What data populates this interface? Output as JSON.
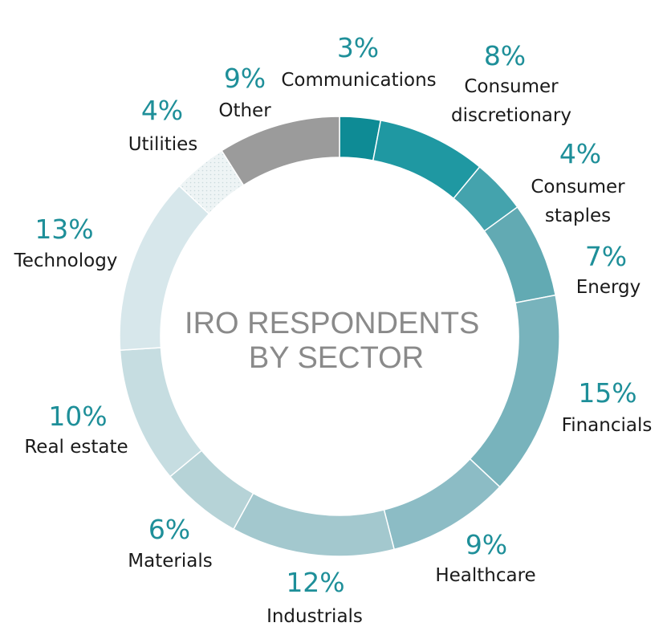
{
  "chart_data": {
    "type": "pie",
    "title": "IRO RESPONDENTS BY SECTOR",
    "title_lines": [
      "IRO RESPONDENTS",
      "BY SECTOR"
    ],
    "value_unit": "%",
    "slices": [
      {
        "name": "Communications",
        "label_lines": [
          "Communications"
        ],
        "value": 3,
        "color": "#0e8b95"
      },
      {
        "name": "Consumer discretionary",
        "label_lines": [
          "Consumer",
          "discretionary"
        ],
        "value": 8,
        "color": "#1f98a2"
      },
      {
        "name": "Consumer staples",
        "label_lines": [
          "Consumer",
          "staples"
        ],
        "value": 4,
        "color": "#44a3ad"
      },
      {
        "name": "Energy",
        "label_lines": [
          "Energy"
        ],
        "value": 7,
        "color": "#62aab3"
      },
      {
        "name": "Financials",
        "label_lines": [
          "Financials"
        ],
        "value": 15,
        "color": "#78b3bc"
      },
      {
        "name": "Healthcare",
        "label_lines": [
          "Healthcare"
        ],
        "value": 9,
        "color": "#8cbcc5"
      },
      {
        "name": "Industrials",
        "label_lines": [
          "Industrials"
        ],
        "value": 12,
        "color": "#a3c8ce"
      },
      {
        "name": "Materials",
        "label_lines": [
          "Materials"
        ],
        "value": 6,
        "color": "#b6d3d7"
      },
      {
        "name": "Real estate",
        "label_lines": [
          "Real estate"
        ],
        "value": 10,
        "color": "#c6dde1"
      },
      {
        "name": "Technology",
        "label_lines": [
          "Technology"
        ],
        "value": 13,
        "color": "#d7e7eb"
      },
      {
        "name": "Utilities",
        "label_lines": [
          "Utilities"
        ],
        "value": 4,
        "color": "#e8f1f2"
      },
      {
        "name": "Other",
        "label_lines": [
          "Other"
        ],
        "value": 9,
        "color": "#9b9b9b"
      }
    ]
  }
}
